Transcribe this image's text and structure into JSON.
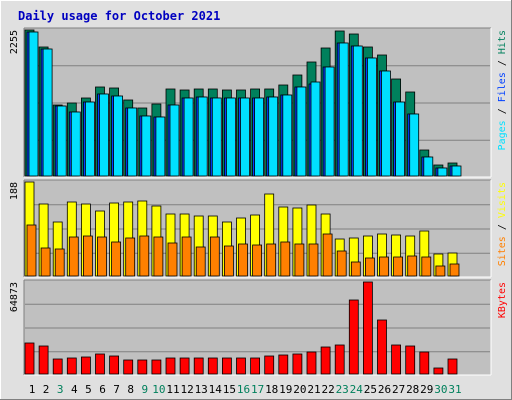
{
  "title": "Daily usage for October 2021",
  "colors": {
    "page_bg": "#e0e0e0",
    "panel_bg": "#c0c0c0",
    "title": "#0000c0",
    "hits": "#00805c",
    "files": "#0040ff",
    "pages": "#00e0ff",
    "visits": "#ffff00",
    "sites": "#ff8000",
    "kbytes": "#ff0000",
    "day_weekday": "#000000",
    "day_weekend": "#00805c"
  },
  "chart_data": [
    {
      "type": "bar",
      "panel": "top",
      "ymax_label": "2255",
      "ymax": 2255,
      "grid": true,
      "series": [
        {
          "name": "Hits",
          "values": [
            2255,
            2000,
            1100,
            1120,
            1200,
            1380,
            1360,
            1180,
            1050,
            1110,
            1350,
            1330,
            1340,
            1340,
            1330,
            1330,
            1340,
            1340,
            1400,
            1560,
            1760,
            1980,
            2240,
            2200,
            2000,
            1870,
            1500,
            1300,
            400,
            170,
            200
          ]
        },
        {
          "name": "Files",
          "values": [
            2230,
            1960,
            1080,
            990,
            1140,
            1270,
            1240,
            1050,
            930,
            910,
            1100,
            1210,
            1220,
            1210,
            1210,
            1210,
            1210,
            1220,
            1250,
            1380,
            1420,
            1690,
            2060,
            2010,
            1820,
            1620,
            1150,
            960,
            300,
            130,
            150
          ]
        },
        {
          "name": "Pages",
          "values": [
            2230,
            1960,
            1080,
            990,
            1140,
            1270,
            1240,
            1050,
            930,
            910,
            1100,
            1210,
            1220,
            1210,
            1210,
            1210,
            1210,
            1220,
            1250,
            1380,
            1450,
            1690,
            2060,
            2010,
            1820,
            1620,
            1150,
            960,
            300,
            130,
            150
          ]
        }
      ],
      "legend": [
        "Hits",
        "Files",
        "Pages"
      ]
    },
    {
      "type": "bar",
      "panel": "middle",
      "ymax_label": "188",
      "ymax": 188,
      "grid": true,
      "series": [
        {
          "name": "Visits",
          "values": [
            188,
            143,
            108,
            147,
            144,
            129,
            145,
            147,
            149,
            140,
            124,
            124,
            121,
            121,
            107,
            115,
            122,
            164,
            138,
            136,
            142,
            124,
            74,
            76,
            80,
            83,
            82,
            80,
            90,
            44,
            45
          ]
        },
        {
          "name": "Sites",
          "values": [
            101,
            56,
            54,
            78,
            80,
            77,
            68,
            76,
            79,
            78,
            66,
            78,
            58,
            77,
            60,
            64,
            61,
            63,
            67,
            63,
            64,
            84,
            51,
            27,
            36,
            37,
            37,
            40,
            37,
            20,
            23
          ]
        }
      ],
      "legend": [
        "Visits",
        "Sites"
      ]
    },
    {
      "type": "bar",
      "panel": "bottom",
      "ymax_label": "64873",
      "ymax": 64873,
      "grid": true,
      "series": [
        {
          "name": "KBytes",
          "values": [
            21800,
            19600,
            10800,
            11000,
            11700,
            13800,
            12400,
            9800,
            9600,
            9600,
            11000,
            11300,
            11300,
            11200,
            11100,
            11100,
            11400,
            12400,
            13200,
            14300,
            15500,
            18700,
            20200,
            52000,
            64873,
            38200,
            20200,
            19700,
            15800,
            4500,
            10300
          ]
        }
      ],
      "legend": [
        "KBytes"
      ]
    }
  ],
  "x_labels": [
    {
      "label": "1",
      "weekend": false
    },
    {
      "label": "2",
      "weekend": false
    },
    {
      "label": "3",
      "weekend": true
    },
    {
      "label": "4",
      "weekend": false
    },
    {
      "label": "5",
      "weekend": false
    },
    {
      "label": "6",
      "weekend": false
    },
    {
      "label": "7",
      "weekend": false
    },
    {
      "label": "8",
      "weekend": false
    },
    {
      "label": "9",
      "weekend": true
    },
    {
      "label": "10",
      "weekend": true
    },
    {
      "label": "11",
      "weekend": false
    },
    {
      "label": "12",
      "weekend": false
    },
    {
      "label": "13",
      "weekend": false
    },
    {
      "label": "14",
      "weekend": false
    },
    {
      "label": "15",
      "weekend": false
    },
    {
      "label": "16",
      "weekend": true
    },
    {
      "label": "17",
      "weekend": true
    },
    {
      "label": "18",
      "weekend": false
    },
    {
      "label": "19",
      "weekend": false
    },
    {
      "label": "20",
      "weekend": false
    },
    {
      "label": "21",
      "weekend": false
    },
    {
      "label": "22",
      "weekend": false
    },
    {
      "label": "23",
      "weekend": true
    },
    {
      "label": "24",
      "weekend": true
    },
    {
      "label": "25",
      "weekend": false
    },
    {
      "label": "26",
      "weekend": false
    },
    {
      "label": "27",
      "weekend": false
    },
    {
      "label": "28",
      "weekend": false
    },
    {
      "label": "29",
      "weekend": false
    },
    {
      "label": "30",
      "weekend": true
    },
    {
      "label": "31",
      "weekend": true
    }
  ],
  "legend_separator": " / "
}
